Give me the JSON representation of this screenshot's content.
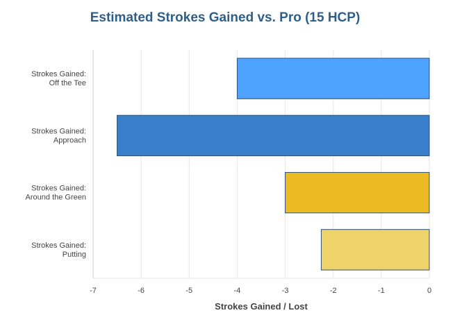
{
  "chart_data": {
    "type": "bar",
    "orientation": "horizontal",
    "title": "Estimated Strokes Gained vs. Pro (15 HCP)",
    "xlabel": "Strokes Gained / Lost",
    "ylabel": "",
    "xlim": [
      -7,
      0
    ],
    "xticks": [
      "-7",
      "-6",
      "-5",
      "-4",
      "-3",
      "-2",
      "-1",
      "0"
    ],
    "grid": true,
    "categories": [
      [
        "Strokes Gained:",
        "Off the Tee"
      ],
      [
        "Strokes Gained:",
        "Approach"
      ],
      [
        "Strokes Gained:",
        "Around the Green"
      ],
      [
        "Strokes Gained:",
        "Putting"
      ]
    ],
    "values": [
      -4,
      -6.5,
      -3,
      -2.25
    ],
    "colors": [
      "#4da3ff",
      "#3a7fcb",
      "#ecbb24",
      "#eed36a"
    ]
  }
}
